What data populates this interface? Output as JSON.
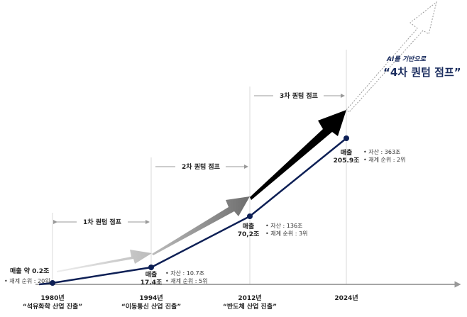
{
  "milestones": [
    {
      "year": "1980년",
      "desc": "“석유화학 산업 진출”",
      "sales_label": "매출 약 0.2조",
      "rank": "• 재계 순위 : 20위"
    },
    {
      "year": "1994년",
      "desc": "“이동통신 산업 진출”",
      "sales_label": "매출",
      "sales_value": "17.4조",
      "assets": "• 자산 : 10.7조",
      "rank": "• 재계 순위 : 5위"
    },
    {
      "year": "2012년",
      "desc": "“반도체 산업 진출”",
      "sales_label": "매출",
      "sales_value": "70,2조",
      "assets": "• 자산 : 136조",
      "rank": "• 재계 순위 : 3위"
    },
    {
      "year": "2024년",
      "sales_label": "매출",
      "sales_value": "205.9조",
      "assets": "• 자산 : 363조",
      "rank": "• 재계 순위 : 2위"
    }
  ],
  "jumps": [
    "1차 퀀텀 점프",
    "2차 퀀텀 점프",
    "3차 퀀텀 점프"
  ],
  "future": {
    "subtitle": "AI를 기반으로",
    "title": "“4차 퀀텀 점프”"
  },
  "colors": {
    "line": "#0d1f55",
    "title": "#1a2c5e",
    "arrow1": "#c4c4c4",
    "arrow2": "#7d7d7d",
    "arrow3": "#000000"
  }
}
